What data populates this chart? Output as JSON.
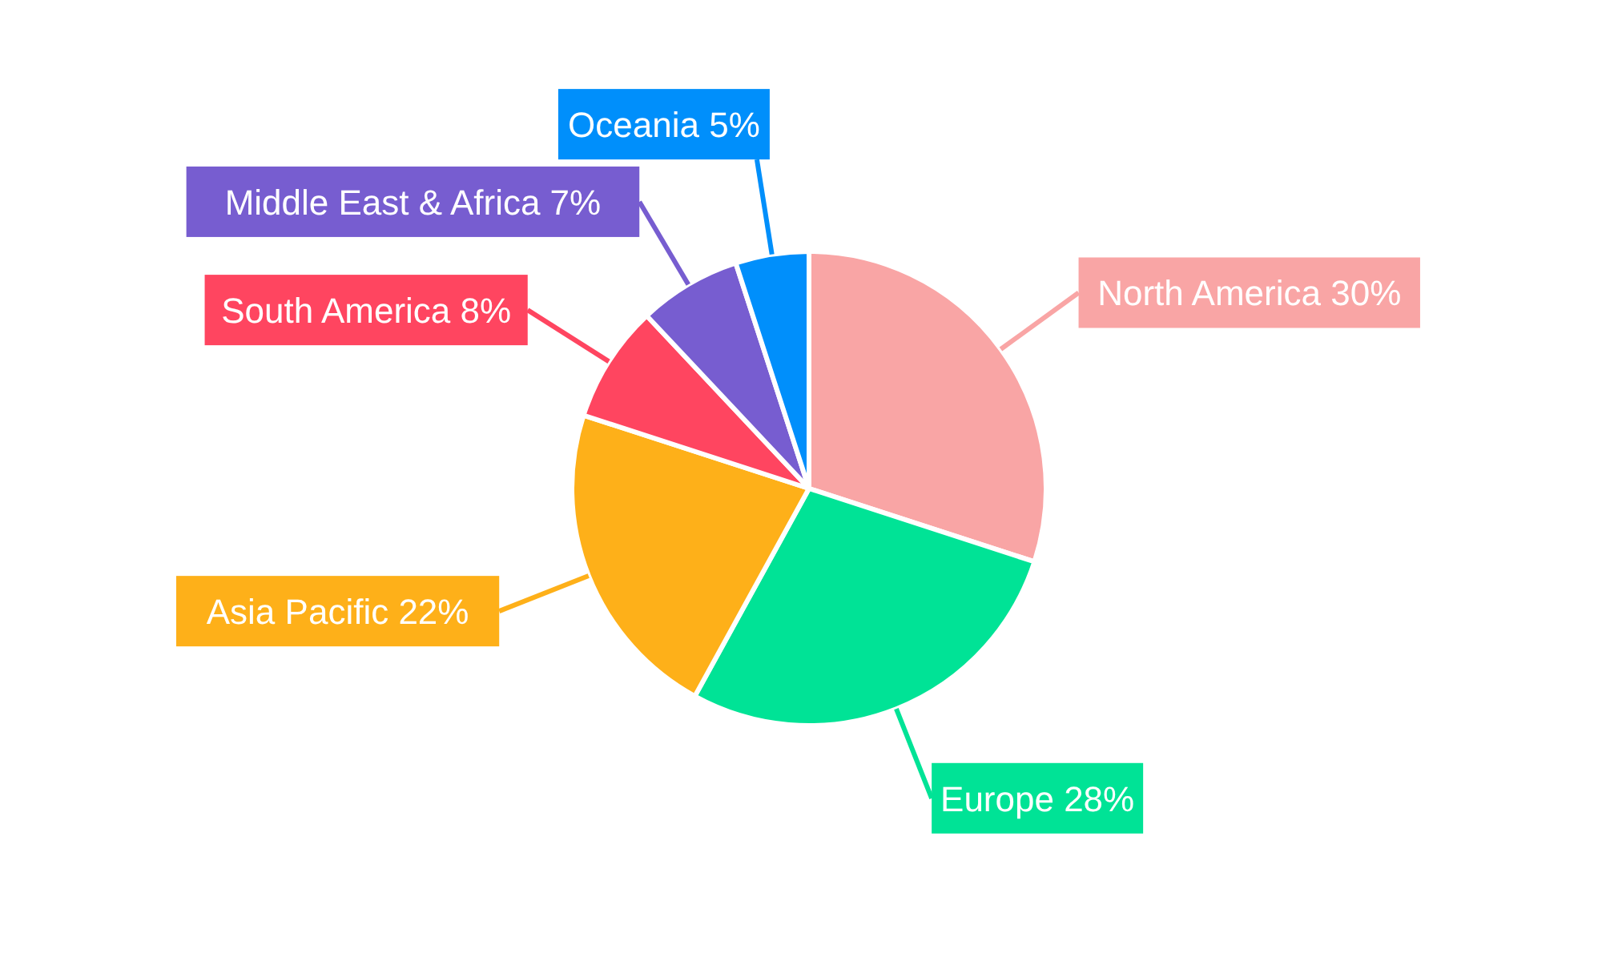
{
  "chart_data": {
    "type": "pie",
    "categories": [
      "North America",
      "Europe",
      "Asia Pacific",
      "South America",
      "Middle East & Africa",
      "Oceania"
    ],
    "values": [
      30,
      28,
      22,
      8,
      7,
      5
    ],
    "value_labels": [
      "30%",
      "28%",
      "22%",
      "8%",
      "7%",
      "5%"
    ],
    "colors": [
      "#f9a5a5",
      "#00e396",
      "#feb019",
      "#ff4560",
      "#775dd0",
      "#008ffb"
    ],
    "legend": false
  }
}
